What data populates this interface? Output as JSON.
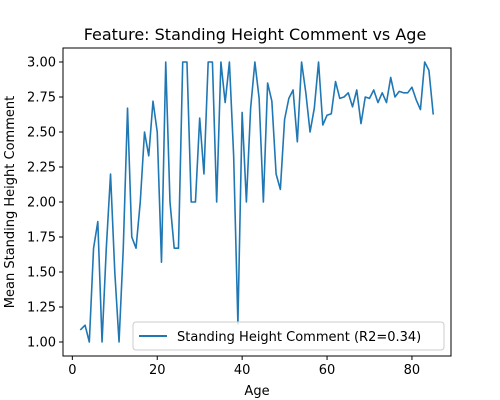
{
  "chart_data": {
    "type": "line",
    "title": "Feature: Standing Height Comment vs Age",
    "xlabel": "Age",
    "ylabel": "Mean Standing Height Comment",
    "xlim": [
      -2.2,
      89.2
    ],
    "ylim": [
      0.9,
      3.1
    ],
    "xticks": [
      0,
      20,
      40,
      60,
      80
    ],
    "yticks": [
      1.0,
      1.25,
      1.5,
      1.75,
      2.0,
      2.25,
      2.5,
      2.75,
      3.0
    ],
    "ytick_labels": [
      "1.00",
      "1.25",
      "1.50",
      "1.75",
      "2.00",
      "2.25",
      "2.50",
      "2.75",
      "3.00"
    ],
    "xtick_labels": [
      "0",
      "20",
      "40",
      "60",
      "80"
    ],
    "grid": false,
    "legend_position": "lower-right",
    "series": [
      {
        "name": "Standing Height Comment (R2=0.34)",
        "color": "#1f77b4",
        "x": [
          2,
          3,
          4,
          5,
          6,
          7,
          8,
          9,
          10,
          11,
          12,
          13,
          14,
          15,
          16,
          17,
          18,
          19,
          20,
          21,
          22,
          23,
          24,
          25,
          26,
          27,
          28,
          29,
          30,
          31,
          32,
          33,
          34,
          35,
          36,
          37,
          38,
          39,
          40,
          41,
          42,
          43,
          44,
          45,
          46,
          47,
          48,
          49,
          50,
          51,
          52,
          53,
          54,
          55,
          56,
          57,
          58,
          59,
          60,
          61,
          62,
          63,
          64,
          65,
          66,
          67,
          68,
          69,
          70,
          71,
          72,
          73,
          74,
          75,
          76,
          77,
          78,
          79,
          80,
          81,
          82,
          83,
          84,
          85
        ],
        "y": [
          1.09,
          1.12,
          1.0,
          1.67,
          1.86,
          1.0,
          1.67,
          2.2,
          1.5,
          1.0,
          1.67,
          2.67,
          1.75,
          1.67,
          2.0,
          2.5,
          2.33,
          2.72,
          2.5,
          1.57,
          3.0,
          2.0,
          1.67,
          1.67,
          3.0,
          3.0,
          2.0,
          2.0,
          2.6,
          2.2,
          3.0,
          3.0,
          2.0,
          3.0,
          2.71,
          3.0,
          2.33,
          1.13,
          2.64,
          2.0,
          2.67,
          3.0,
          2.74,
          2.0,
          2.85,
          2.72,
          2.2,
          2.09,
          2.59,
          2.74,
          2.8,
          2.43,
          3.0,
          2.78,
          2.5,
          2.67,
          3.0,
          2.55,
          2.62,
          2.63,
          2.86,
          2.74,
          2.75,
          2.78,
          2.68,
          2.8,
          2.56,
          2.75,
          2.74,
          2.8,
          2.71,
          2.78,
          2.71,
          2.89,
          2.75,
          2.79,
          2.78,
          2.78,
          2.82,
          2.73,
          2.66,
          3.0,
          2.94,
          2.63
        ]
      }
    ]
  }
}
